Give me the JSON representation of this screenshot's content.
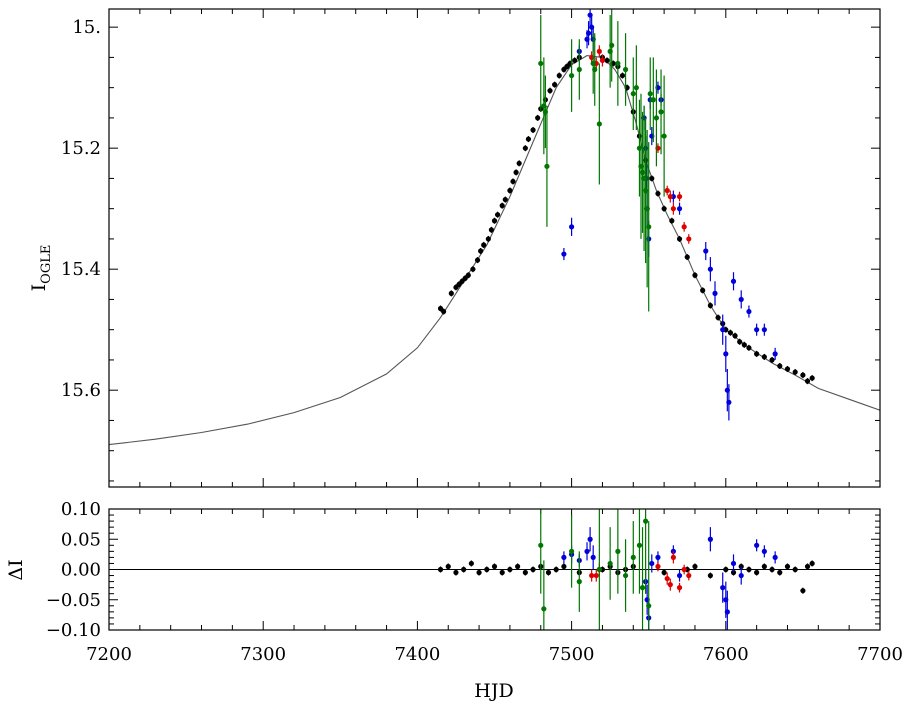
{
  "chart_data": [
    {
      "type": "scatter",
      "panel": "light curve",
      "ylabel": "I",
      "ylabel_subscript": "OGLE",
      "xlim": [
        7200,
        7700
      ],
      "ylim": [
        15.76,
        14.97
      ],
      "y_inverted": true,
      "grid": false,
      "legend": "none",
      "x_ticks": [
        7200,
        7300,
        7400,
        7500,
        7600,
        7700
      ],
      "y_ticks": [
        15.0,
        15.2,
        15.4,
        15.6
      ],
      "y_tick_labels": [
        "15.",
        "15.2",
        "15.4",
        "15.6"
      ],
      "model": {
        "color": "#555555",
        "x": [
          7200,
          7230,
          7260,
          7290,
          7320,
          7350,
          7380,
          7400,
          7415,
          7430,
          7445,
          7460,
          7475,
          7490,
          7500,
          7510,
          7520,
          7528,
          7535,
          7542,
          7548,
          7555,
          7562,
          7570,
          7580,
          7590,
          7600,
          7615,
          7630,
          7645,
          7660,
          7680,
          7700
        ],
        "y": [
          15.69,
          15.681,
          15.67,
          15.656,
          15.637,
          15.612,
          15.573,
          15.53,
          15.48,
          15.42,
          15.36,
          15.28,
          15.19,
          15.1,
          15.062,
          15.047,
          15.05,
          15.07,
          15.1,
          15.16,
          15.22,
          15.27,
          15.31,
          15.35,
          15.41,
          15.46,
          15.5,
          15.53,
          15.555,
          15.575,
          15.597,
          15.615,
          15.633
        ]
      },
      "series": [
        {
          "color": "#000000",
          "x": [
            7415,
            7417,
            7422,
            7425,
            7427,
            7429,
            7431,
            7433,
            7436,
            7439,
            7441,
            7443,
            7446,
            7448,
            7450,
            7452,
            7455,
            7457,
            7460,
            7462,
            7464,
            7466,
            7470,
            7472,
            7475,
            7478,
            7480,
            7483,
            7486,
            7489,
            7492,
            7495,
            7497,
            7499,
            7502,
            7505,
            7520,
            7523,
            7527,
            7530,
            7533,
            7536,
            7540,
            7544,
            7548,
            7552,
            7556,
            7560,
            7565,
            7570,
            7575,
            7580,
            7585,
            7590,
            7595,
            7598,
            7600,
            7603,
            7606,
            7609,
            7612,
            7615,
            7620,
            7625,
            7630,
            7635,
            7640,
            7645,
            7650,
            7653,
            7656
          ],
          "y": [
            15.465,
            15.47,
            15.44,
            15.43,
            15.425,
            15.42,
            15.415,
            15.41,
            15.4,
            15.385,
            15.37,
            15.36,
            15.35,
            15.335,
            15.32,
            15.31,
            15.295,
            15.285,
            15.27,
            15.255,
            15.24,
            15.225,
            15.2,
            15.185,
            15.17,
            15.15,
            15.135,
            15.12,
            15.105,
            15.095,
            15.08,
            15.07,
            15.065,
            15.06,
            15.055,
            15.05,
            15.05,
            15.055,
            15.06,
            15.065,
            15.08,
            15.1,
            15.14,
            15.18,
            15.22,
            15.25,
            15.275,
            15.3,
            15.32,
            15.35,
            15.38,
            15.41,
            15.435,
            15.46,
            15.48,
            15.49,
            15.5,
            15.505,
            15.51,
            15.52,
            15.525,
            15.53,
            15.54,
            15.545,
            15.55,
            15.56,
            15.565,
            15.57,
            15.575,
            15.585,
            15.58
          ],
          "err": [
            0.005,
            0.005,
            0.005,
            0.005,
            0.005,
            0.005,
            0.005,
            0.005,
            0.005,
            0.005,
            0.005,
            0.005,
            0.005,
            0.005,
            0.005,
            0.005,
            0.005,
            0.005,
            0.005,
            0.005,
            0.005,
            0.005,
            0.005,
            0.005,
            0.005,
            0.005,
            0.005,
            0.005,
            0.005,
            0.005,
            0.005,
            0.005,
            0.005,
            0.005,
            0.005,
            0.005,
            0.005,
            0.005,
            0.005,
            0.005,
            0.005,
            0.005,
            0.005,
            0.005,
            0.005,
            0.005,
            0.005,
            0.005,
            0.005,
            0.005,
            0.005,
            0.005,
            0.005,
            0.005,
            0.005,
            0.005,
            0.005,
            0.005,
            0.005,
            0.005,
            0.005,
            0.005,
            0.005,
            0.005,
            0.005,
            0.005,
            0.005,
            0.005,
            0.005,
            0.005,
            0.005
          ]
        },
        {
          "color": "#0000dd",
          "x": [
            7495,
            7500,
            7505,
            7510,
            7511,
            7512,
            7513,
            7514,
            7547,
            7548,
            7548.5,
            7549,
            7550,
            7551,
            7552,
            7556,
            7558,
            7566,
            7570,
            7587,
            7590,
            7593,
            7598,
            7600,
            7601,
            7602,
            7605,
            7610,
            7615,
            7620,
            7625,
            7632
          ],
          "y": [
            15.375,
            15.33,
            15.04,
            15.02,
            15.01,
            14.98,
            15.0,
            15.02,
            15.15,
            15.2,
            15.25,
            15.3,
            15.35,
            15.12,
            15.18,
            15.1,
            15.12,
            15.28,
            15.3,
            15.37,
            15.4,
            15.44,
            15.5,
            15.54,
            15.6,
            15.62,
            15.42,
            15.45,
            15.47,
            15.5,
            15.5,
            15.54
          ],
          "err": [
            0.01,
            0.015,
            0.01,
            0.015,
            0.02,
            0.02,
            0.02,
            0.02,
            0.02,
            0.02,
            0.025,
            0.03,
            0.03,
            0.015,
            0.015,
            0.01,
            0.01,
            0.01,
            0.01,
            0.015,
            0.02,
            0.02,
            0.025,
            0.03,
            0.035,
            0.03,
            0.015,
            0.015,
            0.01,
            0.01,
            0.01,
            0.01
          ]
        },
        {
          "color": "#dd0000",
          "x": [
            7513,
            7516,
            7518,
            7520,
            7556,
            7562,
            7564,
            7566,
            7570,
            7573,
            7576
          ],
          "y": [
            15.05,
            15.06,
            15.04,
            15.055,
            15.2,
            15.27,
            15.28,
            15.3,
            15.28,
            15.33,
            15.35
          ],
          "err": [
            0.01,
            0.01,
            0.01,
            0.01,
            0.008,
            0.008,
            0.01,
            0.01,
            0.008,
            0.008,
            0.008
          ]
        },
        {
          "color": "#007700",
          "x": [
            7480,
            7482,
            7483,
            7484,
            7500,
            7505,
            7514,
            7515,
            7518,
            7525,
            7526,
            7530,
            7535,
            7540,
            7542,
            7544,
            7545,
            7546,
            7547,
            7548,
            7549,
            7550,
            7551,
            7553,
            7555,
            7558,
            7560
          ],
          "y": [
            15.06,
            15.13,
            15.14,
            15.23,
            15.08,
            15.07,
            15.06,
            15.07,
            15.16,
            15.04,
            15.03,
            15.06,
            15.07,
            15.11,
            15.1,
            15.2,
            15.23,
            15.24,
            15.25,
            15.27,
            15.3,
            15.33,
            15.11,
            15.12,
            15.15,
            15.14,
            15.18
          ],
          "err": [
            0.08,
            0.08,
            0.06,
            0.1,
            0.06,
            0.05,
            0.05,
            0.06,
            0.1,
            0.06,
            0.06,
            0.07,
            0.06,
            0.06,
            0.07,
            0.08,
            0.12,
            0.1,
            0.12,
            0.12,
            0.13,
            0.14,
            0.06,
            0.07,
            0.08,
            0.07,
            0.1
          ]
        }
      ]
    },
    {
      "type": "scatter",
      "panel": "residuals",
      "xlabel": "HJD",
      "ylabel": "ΔI",
      "xlim": [
        7200,
        7700
      ],
      "ylim": [
        -0.1,
        0.1
      ],
      "grid": false,
      "legend": "none",
      "x_ticks": [
        7200,
        7300,
        7400,
        7500,
        7600,
        7700
      ],
      "y_ticks": [
        -0.1,
        -0.05,
        0.0,
        0.05,
        0.1
      ],
      "y_tick_labels": [
        "−0.10",
        "−0.05",
        "0.00",
        "0.05",
        "0.10"
      ],
      "zero_line": 0.0,
      "series": [
        {
          "color": "#000000",
          "x": [
            7415,
            7420,
            7425,
            7430,
            7435,
            7440,
            7445,
            7450,
            7455,
            7460,
            7465,
            7470,
            7475,
            7480,
            7485,
            7490,
            7495,
            7505,
            7520,
            7525,
            7530,
            7535,
            7540,
            7560,
            7575,
            7580,
            7590,
            7600,
            7605,
            7610,
            7615,
            7620,
            7625,
            7630,
            7635,
            7640,
            7645,
            7650,
            7653,
            7656
          ],
          "y": [
            0.0,
            0.005,
            -0.005,
            0.0,
            0.01,
            -0.005,
            0.0,
            0.005,
            -0.005,
            0.0,
            0.005,
            -0.005,
            0.0,
            0.005,
            -0.005,
            0.0,
            0.005,
            -0.005,
            0.0,
            0.005,
            -0.005,
            0.0,
            0.005,
            -0.005,
            0.0,
            0.005,
            -0.01,
            0.0,
            -0.005,
            0.005,
            0.0,
            -0.005,
            0.005,
            0.0,
            -0.005,
            0.005,
            0.0,
            -0.035,
            0.005,
            0.01
          ],
          "err": [
            0.005,
            0.005,
            0.005,
            0.005,
            0.005,
            0.005,
            0.005,
            0.005,
            0.005,
            0.005,
            0.005,
            0.005,
            0.005,
            0.005,
            0.005,
            0.005,
            0.005,
            0.005,
            0.005,
            0.005,
            0.005,
            0.005,
            0.005,
            0.005,
            0.005,
            0.005,
            0.005,
            0.005,
            0.005,
            0.005,
            0.005,
            0.005,
            0.005,
            0.005,
            0.005,
            0.005,
            0.005,
            0.005,
            0.005,
            0.005
          ]
        },
        {
          "color": "#0000dd",
          "x": [
            7495,
            7500,
            7505,
            7510,
            7512,
            7514,
            7548,
            7549,
            7550,
            7552,
            7556,
            7566,
            7570,
            7590,
            7598,
            7600,
            7601,
            7605,
            7610,
            7620,
            7625,
            7632
          ],
          "y": [
            0.02,
            0.025,
            0.015,
            0.03,
            0.05,
            0.02,
            -0.02,
            -0.05,
            -0.08,
            0.01,
            0.02,
            0.03,
            -0.01,
            0.05,
            -0.03,
            -0.05,
            -0.07,
            0.01,
            -0.01,
            0.04,
            0.03,
            0.02
          ],
          "err": [
            0.01,
            0.015,
            0.01,
            0.015,
            0.02,
            0.02,
            0.02,
            0.025,
            0.03,
            0.015,
            0.01,
            0.01,
            0.01,
            0.02,
            0.025,
            0.03,
            0.035,
            0.015,
            0.015,
            0.01,
            0.01,
            0.01
          ]
        },
        {
          "color": "#dd0000",
          "x": [
            7513,
            7516,
            7518,
            7556,
            7562,
            7564,
            7566,
            7570,
            7573,
            7576
          ],
          "y": [
            -0.01,
            -0.01,
            0.0,
            0.005,
            -0.015,
            -0.025,
            0.02,
            -0.03,
            0.0,
            -0.01
          ],
          "err": [
            0.01,
            0.01,
            0.01,
            0.008,
            0.01,
            0.01,
            0.01,
            0.008,
            0.008,
            0.008
          ]
        },
        {
          "color": "#007700",
          "x": [
            7480,
            7482,
            7500,
            7505,
            7518,
            7525,
            7530,
            7535,
            7540,
            7544,
            7546,
            7548,
            7550
          ],
          "y": [
            0.04,
            -0.065,
            0.03,
            -0.02,
            0.0,
            0.01,
            0.03,
            -0.01,
            0.02,
            0.04,
            -0.03,
            0.08,
            -0.06
          ],
          "err": [
            0.08,
            0.08,
            0.06,
            0.05,
            0.1,
            0.06,
            0.07,
            0.06,
            0.06,
            0.08,
            0.1,
            0.12,
            0.14
          ]
        }
      ]
    }
  ]
}
